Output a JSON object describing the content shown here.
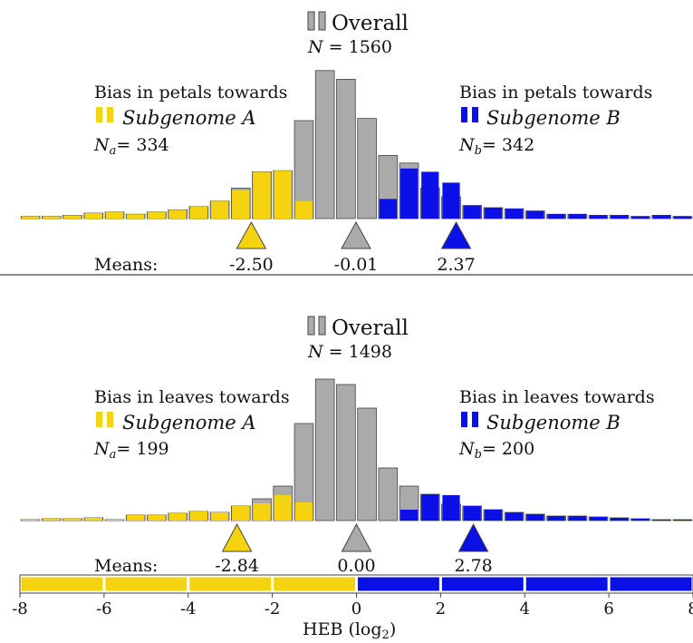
{
  "colors": {
    "grey": "#aaaaaa",
    "yellow": "#f5d40f",
    "blue": "#0b10e6",
    "frame": "#444444",
    "white": "#ffffff"
  },
  "icons": {
    "legend_swatch": "legend-swatch-icon",
    "mean_marker": "triangle-marker-icon"
  },
  "chart_data": [
    {
      "type": "bar",
      "panel": "petals",
      "overall_label": "Overall",
      "overall_n_prefix": "N = ",
      "overall_n": "1560",
      "bias_a_text": "Bias in petals towards",
      "subgenome_a_label": "Subgenome A",
      "na_prefix": "N",
      "na_sub": "a",
      "na_eq": "= ",
      "na_value": "334",
      "bias_b_text": "Bias in petals towards",
      "subgenome_b_label": "Subgenome B",
      "nb_prefix": "N",
      "nb_sub": "b",
      "nb_eq": "= ",
      "nb_value": "342",
      "means_label": "Means:",
      "means": [
        {
          "series": "a",
          "value": -2.5,
          "label": "-2.50"
        },
        {
          "series": "overall",
          "value": -0.01,
          "label": "-0.01"
        },
        {
          "series": "b",
          "value": 2.37,
          "label": "2.37"
        }
      ],
      "x": [
        -7.75,
        -7.25,
        -6.75,
        -6.25,
        -5.75,
        -5.25,
        -4.75,
        -4.25,
        -3.75,
        -3.25,
        -2.75,
        -2.25,
        -1.75,
        -1.25,
        -0.75,
        -0.25,
        0.25,
        0.75,
        1.25,
        1.75,
        2.25,
        2.75,
        3.25,
        3.75,
        4.25,
        4.75,
        5.25,
        5.75,
        6.25,
        6.75,
        7.25,
        7.75
      ],
      "series": [
        {
          "name": "Overall",
          "values": [
            2,
            2,
            3,
            5,
            6,
            4,
            6,
            8,
            11,
            16,
            28,
            43,
            44,
            90,
            136,
            128,
            92,
            58,
            51,
            28,
            20,
            12,
            10,
            9,
            7,
            4,
            4,
            3,
            3,
            2,
            3,
            2
          ]
        },
        {
          "name": "Subgenome A",
          "values": [
            2,
            2,
            3,
            5,
            6,
            4,
            6,
            8,
            11,
            16,
            26,
            43,
            44,
            16,
            0,
            0,
            0,
            0,
            0,
            0,
            0,
            0,
            0,
            0,
            0,
            0,
            0,
            0,
            0,
            0,
            0,
            0
          ]
        },
        {
          "name": "Subgenome B",
          "values": [
            0,
            0,
            0,
            0,
            0,
            0,
            0,
            0,
            0,
            0,
            0,
            0,
            0,
            0,
            0,
            0,
            0,
            18,
            46,
            43,
            33,
            12,
            10,
            9,
            7,
            4,
            4,
            3,
            3,
            2,
            3,
            2
          ]
        }
      ],
      "xlim": [
        -8,
        8
      ],
      "ylim": [
        0,
        140
      ]
    },
    {
      "type": "bar",
      "panel": "leaves",
      "overall_label": "Overall",
      "overall_n_prefix": "N = ",
      "overall_n": "1498",
      "bias_a_text": "Bias in leaves towards",
      "subgenome_a_label": "Subgenome A",
      "na_prefix": "N",
      "na_sub": "a",
      "na_eq": "= ",
      "na_value": "199",
      "bias_b_text": "Bias in leaves towards",
      "subgenome_b_label": "Subgenome B",
      "nb_prefix": "N",
      "nb_sub": "b",
      "nb_eq": "= ",
      "nb_value": "200",
      "means_label": "Means:",
      "means": [
        {
          "series": "a",
          "value": -2.84,
          "label": "-2.84"
        },
        {
          "series": "overall",
          "value": 0.0,
          "label": "0.00"
        },
        {
          "series": "b",
          "value": 2.78,
          "label": "2.78"
        }
      ],
      "x": [
        -7.75,
        -7.25,
        -6.75,
        -6.25,
        -5.75,
        -5.25,
        -4.75,
        -4.25,
        -3.75,
        -3.25,
        -2.75,
        -2.25,
        -1.75,
        -1.25,
        -0.75,
        -0.25,
        0.25,
        0.75,
        1.25,
        1.75,
        2.25,
        2.75,
        3.25,
        3.75,
        4.25,
        4.75,
        5.25,
        5.75,
        6.25,
        6.75,
        7.25,
        7.75
      ],
      "series": [
        {
          "name": "Overall",
          "values": [
            1,
            2,
            2,
            3,
            1,
            6,
            6,
            8,
            10,
            9,
            16,
            24,
            38,
            107,
            156,
            150,
            124,
            58,
            38,
            29,
            18,
            16,
            12,
            9,
            7,
            5,
            5,
            4,
            3,
            2,
            1,
            1
          ]
        },
        {
          "name": "Subgenome A",
          "values": [
            1,
            2,
            2,
            3,
            1,
            6,
            6,
            8,
            10,
            9,
            16,
            19,
            28,
            20,
            0,
            0,
            0,
            0,
            0,
            0,
            0,
            0,
            0,
            0,
            0,
            0,
            0,
            0,
            0,
            0,
            0,
            0
          ]
        },
        {
          "name": "Subgenome B",
          "values": [
            0,
            0,
            0,
            0,
            0,
            0,
            0,
            0,
            0,
            0,
            0,
            0,
            0,
            0,
            0,
            0,
            0,
            0,
            12,
            29,
            28,
            16,
            12,
            9,
            7,
            5,
            5,
            4,
            3,
            2,
            1,
            1
          ]
        }
      ],
      "xlim": [
        -8,
        8
      ],
      "ylim": [
        0,
        170
      ]
    }
  ],
  "axis": {
    "xlabel_main": "HEB (log",
    "xlabel_sub": "2",
    "xlabel_end": ")",
    "ticks": [
      -8,
      -6,
      -4,
      -2,
      0,
      2,
      4,
      6,
      8
    ]
  }
}
